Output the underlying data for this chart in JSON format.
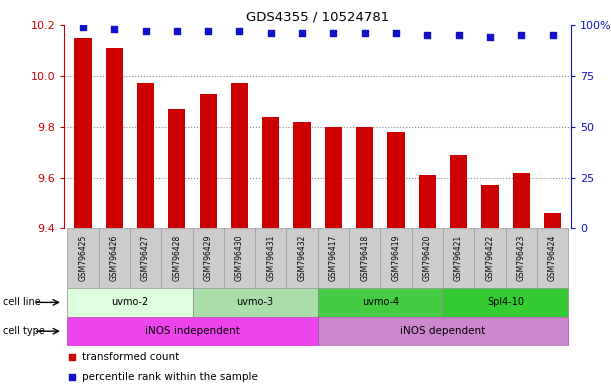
{
  "title": "GDS4355 / 10524781",
  "samples": [
    "GSM796425",
    "GSM796426",
    "GSM796427",
    "GSM796428",
    "GSM796429",
    "GSM796430",
    "GSM796431",
    "GSM796432",
    "GSM796417",
    "GSM796418",
    "GSM796419",
    "GSM796420",
    "GSM796421",
    "GSM796422",
    "GSM796423",
    "GSM796424"
  ],
  "bar_values": [
    10.15,
    10.11,
    9.97,
    9.87,
    9.93,
    9.97,
    9.84,
    9.82,
    9.8,
    9.8,
    9.78,
    9.61,
    9.69,
    9.57,
    9.62,
    9.46
  ],
  "percentile_values": [
    99,
    98,
    97,
    97,
    97,
    97,
    96,
    96,
    96,
    96,
    96,
    95,
    95,
    94,
    95,
    95
  ],
  "ylim_left": [
    9.4,
    10.2
  ],
  "ylim_right": [
    0,
    100
  ],
  "bar_color": "#cc0000",
  "dot_color": "#1111cc",
  "cell_lines": [
    {
      "label": "uvmo-2",
      "start": 0,
      "end": 3,
      "color": "#ddffdd"
    },
    {
      "label": "uvmo-3",
      "start": 4,
      "end": 7,
      "color": "#aaddaa"
    },
    {
      "label": "uvmo-4",
      "start": 8,
      "end": 11,
      "color": "#44cc44"
    },
    {
      "label": "Spl4-10",
      "start": 12,
      "end": 15,
      "color": "#33cc33"
    }
  ],
  "cell_types": [
    {
      "label": "iNOS independent",
      "start": 0,
      "end": 7,
      "color": "#ff44ff"
    },
    {
      "label": "iNOS dependent",
      "start": 8,
      "end": 15,
      "color": "#dd88dd"
    }
  ],
  "legend_items": [
    {
      "label": "transformed count",
      "color": "#cc0000"
    },
    {
      "label": "percentile rank within the sample",
      "color": "#1111cc"
    }
  ],
  "yticks_left": [
    9.4,
    9.6,
    9.8,
    10.0,
    10.2
  ],
  "yticks_right": [
    0,
    25,
    50,
    75,
    100
  ],
  "grid_lines": [
    9.6,
    9.8,
    10.0
  ],
  "grid_color": "#888888",
  "bg_color": "#ffffff",
  "axis_color_left": "#cc0000",
  "axis_color_right": "#1111cc",
  "sample_box_color": "#cccccc",
  "sample_box_edge": "#999999"
}
